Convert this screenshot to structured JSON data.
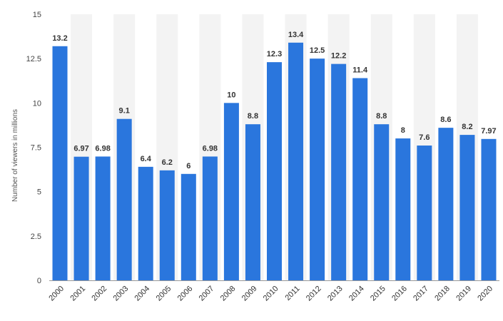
{
  "chart_data": {
    "type": "bar",
    "title": "",
    "xlabel": "",
    "ylabel": "Number of viewers in millions",
    "ylim": [
      0,
      15
    ],
    "yticks": [
      "0",
      "2.5",
      "5",
      "7.5",
      "10",
      "12.5",
      "15"
    ],
    "grid": "alternating vertical bands",
    "categories": [
      "2000",
      "2001",
      "2002",
      "2003",
      "2004",
      "2005",
      "2006",
      "2007",
      "2008",
      "2009",
      "2010",
      "2011",
      "2012",
      "2013",
      "2014",
      "2015",
      "2016",
      "2017",
      "2018",
      "2019",
      "2020"
    ],
    "values": [
      13.2,
      6.97,
      6.98,
      9.1,
      6.4,
      6.2,
      6,
      6.98,
      10,
      8.8,
      12.3,
      13.4,
      12.5,
      12.2,
      11.4,
      8.8,
      8,
      7.6,
      8.6,
      8.2,
      7.97
    ],
    "value_labels": [
      "13.2",
      "6.97",
      "6.98",
      "9.1",
      "6.4",
      "6.2",
      "6",
      "6.98",
      "10",
      "8.8",
      "12.3",
      "13.4",
      "12.5",
      "12.2",
      "11.4",
      "8.8",
      "8",
      "7.6",
      "8.6",
      "8.2",
      "7.97"
    ],
    "colors": {
      "bar": "#2a76dd",
      "band": "#f3f3f3",
      "baseline": "#999999"
    }
  }
}
